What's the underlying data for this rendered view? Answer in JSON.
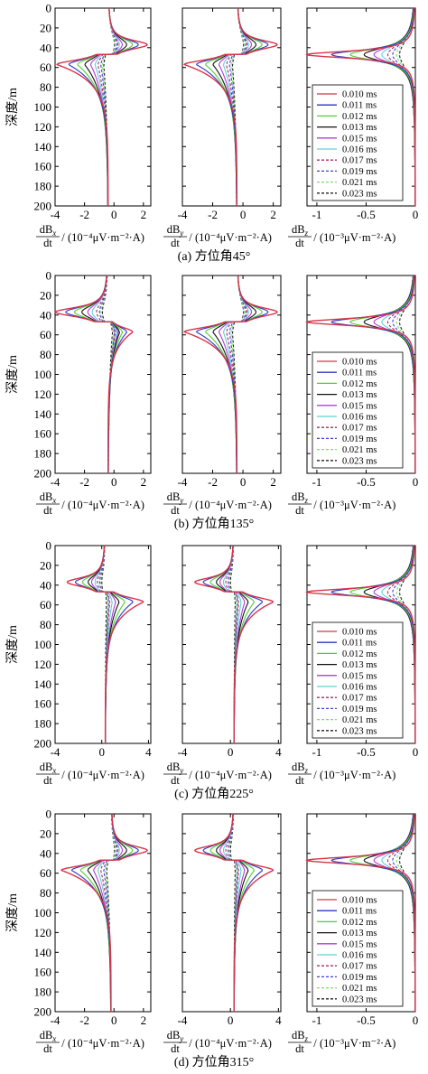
{
  "figure": {
    "y_axis_label": "深度/m",
    "y_ticks": [
      "0",
      "20",
      "40",
      "60",
      "80",
      "100",
      "120",
      "140",
      "160",
      "180",
      "200"
    ],
    "xlabel_x": {
      "deriv_top": "dB",
      "deriv_sub": "x",
      "deriv_bottom": "dt",
      "unit": "(10⁻⁴μV·m⁻²·A)"
    },
    "xlabel_y": {
      "deriv_top": "dB",
      "deriv_sub": "y",
      "deriv_bottom": "dt",
      "unit": "(10⁻⁴μV·m⁻²·A)"
    },
    "xlabel_z": {
      "deriv_top": "dB",
      "deriv_sub": "z",
      "deriv_bottom": "dt",
      "unit": "(10⁻³μV·m⁻²·A)"
    },
    "legend": [
      "0.010 ms",
      "0.011 ms",
      "0.012 ms",
      "0.013 ms",
      "0.015 ms",
      "0.016 ms",
      "0.017 ms",
      "0.019 ms",
      "0.021 ms",
      "0.023 ms"
    ],
    "series_colors": [
      "#d8344a",
      "#2a36c8",
      "#4ecf2e",
      "#111111",
      "#b23bd6",
      "#5fd0d8",
      "#b3245e",
      "#3a3fe0",
      "#7de06a",
      "#222222"
    ],
    "series_dashed": [
      false,
      false,
      false,
      false,
      false,
      false,
      true,
      true,
      true,
      true
    ],
    "panels": [
      {
        "caption": "(a) 方位角45°",
        "x_ticks_x": [
          "-4",
          "-2",
          "0",
          "2"
        ],
        "x_ticks_y": [
          "-4",
          "-2",
          "0",
          "2"
        ],
        "x_ticks_z": [
          "-1",
          "-0.5",
          "0"
        ]
      },
      {
        "caption": "(b)  方位角135°",
        "x_ticks_x": [
          "-4",
          "-2",
          "0",
          "2"
        ],
        "x_ticks_y": [
          "-4",
          "-2",
          "0",
          "2"
        ],
        "x_ticks_z": [
          "-1",
          "-0.5",
          "0"
        ]
      },
      {
        "caption": "(c)  方位角225°",
        "x_ticks_x": [
          "-4",
          "0",
          "4"
        ],
        "x_ticks_y": [
          "-4",
          "0",
          "4"
        ],
        "x_ticks_z": [
          "-1",
          "-0.5",
          "0"
        ]
      },
      {
        "caption": "(d)  方位角315°",
        "x_ticks_x": [
          "-4",
          "-2",
          "0",
          "2"
        ],
        "x_ticks_y": [
          "-4",
          "0",
          "4"
        ],
        "x_ticks_z": [
          "-1",
          "-0.5",
          "0"
        ]
      }
    ]
  },
  "chart_data": [
    {
      "type": "line",
      "panel": "a",
      "component": "dBx/dt",
      "xlim": [
        -4,
        2.5
      ],
      "ylim": [
        200,
        0
      ],
      "layout": "depth-profile",
      "series_peak": {
        "depth_of_max": 37,
        "depth_of_min": 57,
        "baseline": -0.4
      },
      "max_values": [
        2.3,
        1.7,
        1.3,
        0.9,
        0.6,
        0.4,
        0.3,
        0.2,
        0.1,
        0.05
      ],
      "min_values": [
        -3.9,
        -3.1,
        -2.5,
        -2.0,
        -1.6,
        -1.3,
        -1.1,
        -0.9,
        -0.8,
        -0.7
      ]
    },
    {
      "type": "line",
      "panel": "a",
      "component": "dBy/dt",
      "xlim": [
        -4,
        2.5
      ],
      "ylim": [
        200,
        0
      ],
      "layout": "depth-profile",
      "series_peak": {
        "depth_of_max": 37,
        "depth_of_min": 57,
        "baseline": -0.4
      },
      "max_values": [
        2.3,
        1.7,
        1.3,
        0.9,
        0.6,
        0.4,
        0.3,
        0.2,
        0.1,
        0.05
      ],
      "min_values": [
        -3.9,
        -3.1,
        -2.5,
        -2.0,
        -1.6,
        -1.3,
        -1.1,
        -0.9,
        -0.8,
        -0.7
      ]
    },
    {
      "type": "line",
      "panel": "a",
      "component": "dBz/dt",
      "xlim": [
        -1.1,
        0
      ],
      "ylim": [
        200,
        0
      ],
      "layout": "depth-profile-z",
      "min_depth": 47,
      "min_values": [
        -1.1,
        -0.85,
        -0.66,
        -0.52,
        -0.42,
        -0.34,
        -0.28,
        -0.23,
        -0.19,
        -0.16
      ]
    },
    {
      "type": "line",
      "panel": "b",
      "component": "dBx/dt",
      "xlim": [
        -4,
        2.5
      ],
      "ylim": [
        200,
        0
      ],
      "layout": "depth-profile",
      "series_peak": {
        "depth_of_max": 57,
        "depth_of_min": 37,
        "baseline": -0.4
      },
      "max_values": [
        1.3,
        0.9,
        0.6,
        0.4,
        0.3,
        0.2,
        0.1,
        0.05,
        0.0,
        -0.1
      ],
      "min_values": [
        -4.0,
        -3.3,
        -2.7,
        -2.2,
        -1.8,
        -1.5,
        -1.2,
        -1.0,
        -0.9,
        -0.8
      ]
    },
    {
      "type": "line",
      "panel": "b",
      "component": "dBy/dt",
      "xlim": [
        -4,
        2.5
      ],
      "ylim": [
        200,
        0
      ],
      "layout": "depth-profile",
      "series_peak": {
        "depth_of_max": 37,
        "depth_of_min": 57,
        "baseline": -0.4
      },
      "max_values": [
        2.3,
        1.7,
        1.3,
        0.9,
        0.6,
        0.4,
        0.3,
        0.2,
        0.1,
        0.05
      ],
      "min_values": [
        -3.9,
        -3.1,
        -2.5,
        -2.0,
        -1.6,
        -1.3,
        -1.1,
        -0.9,
        -0.8,
        -0.7
      ]
    },
    {
      "type": "line",
      "panel": "b",
      "component": "dBz/dt",
      "xlim": [
        -1.1,
        0
      ],
      "ylim": [
        200,
        0
      ],
      "layout": "depth-profile-z",
      "min_depth": 47,
      "min_values": [
        -1.1,
        -0.85,
        -0.66,
        -0.52,
        -0.42,
        -0.34,
        -0.28,
        -0.23,
        -0.19,
        -0.16
      ]
    },
    {
      "type": "line",
      "panel": "c",
      "component": "dBx/dt",
      "xlim": [
        -4,
        4.2
      ],
      "ylim": [
        200,
        0
      ],
      "layout": "depth-profile",
      "series_peak": {
        "depth_of_max": 57,
        "depth_of_min": 37,
        "baseline": 0.3
      },
      "max_values": [
        3.6,
        2.7,
        2.0,
        1.5,
        1.2,
        0.9,
        0.7,
        0.6,
        0.5,
        0.4
      ],
      "min_values": [
        -3.0,
        -2.3,
        -1.7,
        -1.2,
        -0.9,
        -0.6,
        -0.4,
        -0.2,
        -0.1,
        0.0
      ]
    },
    {
      "type": "line",
      "panel": "c",
      "component": "dBy/dt",
      "xlim": [
        -4,
        4.2
      ],
      "ylim": [
        200,
        0
      ],
      "layout": "depth-profile",
      "series_peak": {
        "depth_of_max": 57,
        "depth_of_min": 37,
        "baseline": 0.3
      },
      "max_values": [
        3.6,
        2.7,
        2.0,
        1.5,
        1.2,
        0.9,
        0.7,
        0.6,
        0.5,
        0.4
      ],
      "min_values": [
        -3.0,
        -2.3,
        -1.7,
        -1.2,
        -0.9,
        -0.6,
        -0.4,
        -0.2,
        -0.1,
        0.0
      ]
    },
    {
      "type": "line",
      "panel": "c",
      "component": "dBz/dt",
      "xlim": [
        -1.1,
        0
      ],
      "ylim": [
        200,
        0
      ],
      "layout": "depth-profile-z",
      "min_depth": 47,
      "min_values": [
        -1.1,
        -0.85,
        -0.66,
        -0.52,
        -0.42,
        -0.34,
        -0.28,
        -0.23,
        -0.19,
        -0.16
      ]
    },
    {
      "type": "line",
      "panel": "d",
      "component": "dBx/dt",
      "xlim": [
        -4,
        2.5
      ],
      "ylim": [
        200,
        0
      ],
      "layout": "depth-profile",
      "series_peak": {
        "depth_of_max": 37,
        "depth_of_min": 57,
        "baseline": -0.2
      },
      "max_values": [
        2.3,
        1.7,
        1.3,
        0.9,
        0.6,
        0.4,
        0.3,
        0.2,
        0.1,
        0.05
      ],
      "min_values": [
        -3.6,
        -2.9,
        -2.3,
        -1.8,
        -1.4,
        -1.1,
        -0.9,
        -0.7,
        -0.6,
        -0.5
      ]
    },
    {
      "type": "line",
      "panel": "d",
      "component": "dBy/dt",
      "xlim": [
        -4,
        4.2
      ],
      "ylim": [
        200,
        0
      ],
      "layout": "depth-profile",
      "series_peak": {
        "depth_of_max": 57,
        "depth_of_min": 37,
        "baseline": 0.3
      },
      "max_values": [
        3.6,
        2.7,
        2.0,
        1.5,
        1.2,
        0.9,
        0.7,
        0.6,
        0.5,
        0.4
      ],
      "min_values": [
        -3.0,
        -2.3,
        -1.7,
        -1.2,
        -0.9,
        -0.6,
        -0.4,
        -0.2,
        -0.1,
        0.0
      ]
    },
    {
      "type": "line",
      "panel": "d",
      "component": "dBz/dt",
      "xlim": [
        -1.1,
        0
      ],
      "ylim": [
        200,
        0
      ],
      "layout": "depth-profile-z",
      "min_depth": 47,
      "min_values": [
        -1.1,
        -0.85,
        -0.66,
        -0.52,
        -0.42,
        -0.34,
        -0.28,
        -0.23,
        -0.19,
        -0.16
      ]
    }
  ]
}
